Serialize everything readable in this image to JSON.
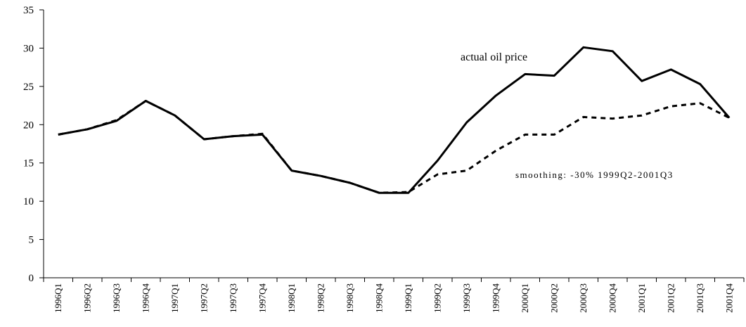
{
  "chart_data": {
    "type": "line",
    "categories": [
      "1996Q1",
      "1996Q2",
      "1996Q3",
      "1996Q4",
      "1997Q1",
      "1997Q2",
      "1997Q3",
      "1997Q4",
      "1998Q1",
      "1998Q2",
      "1998Q3",
      "1998Q4",
      "1999Q1",
      "1999Q2",
      "1999Q3",
      "1999Q4",
      "2000Q1",
      "2000Q2",
      "2000Q3",
      "2000Q4",
      "2001Q1",
      "2001Q2",
      "2001Q3",
      "2001Q4"
    ],
    "series": [
      {
        "name": "actual oil price",
        "color": "#000000",
        "style": "solid",
        "values": [
          18.7,
          19.4,
          20.5,
          23.1,
          21.2,
          18.1,
          18.5,
          18.7,
          14.0,
          13.3,
          12.4,
          11.1,
          11.1,
          15.3,
          20.3,
          23.8,
          26.6,
          26.4,
          30.1,
          29.6,
          25.7,
          27.2,
          25.3,
          20.9
        ]
      },
      {
        "name": "smoothing: -30% 1999Q2-2001Q3",
        "color": "#000000",
        "style": "dashed",
        "values": [
          18.7,
          19.4,
          20.6,
          23.1,
          21.2,
          18.1,
          18.5,
          18.8,
          14.0,
          13.3,
          12.4,
          11.1,
          11.2,
          13.5,
          14.0,
          16.6,
          18.7,
          18.7,
          21.0,
          20.8,
          21.2,
          22.4,
          22.8,
          20.9
        ]
      }
    ],
    "ylim": [
      0,
      35
    ],
    "yticks": [
      0,
      5,
      10,
      15,
      20,
      25,
      30,
      35
    ],
    "grid": false
  }
}
